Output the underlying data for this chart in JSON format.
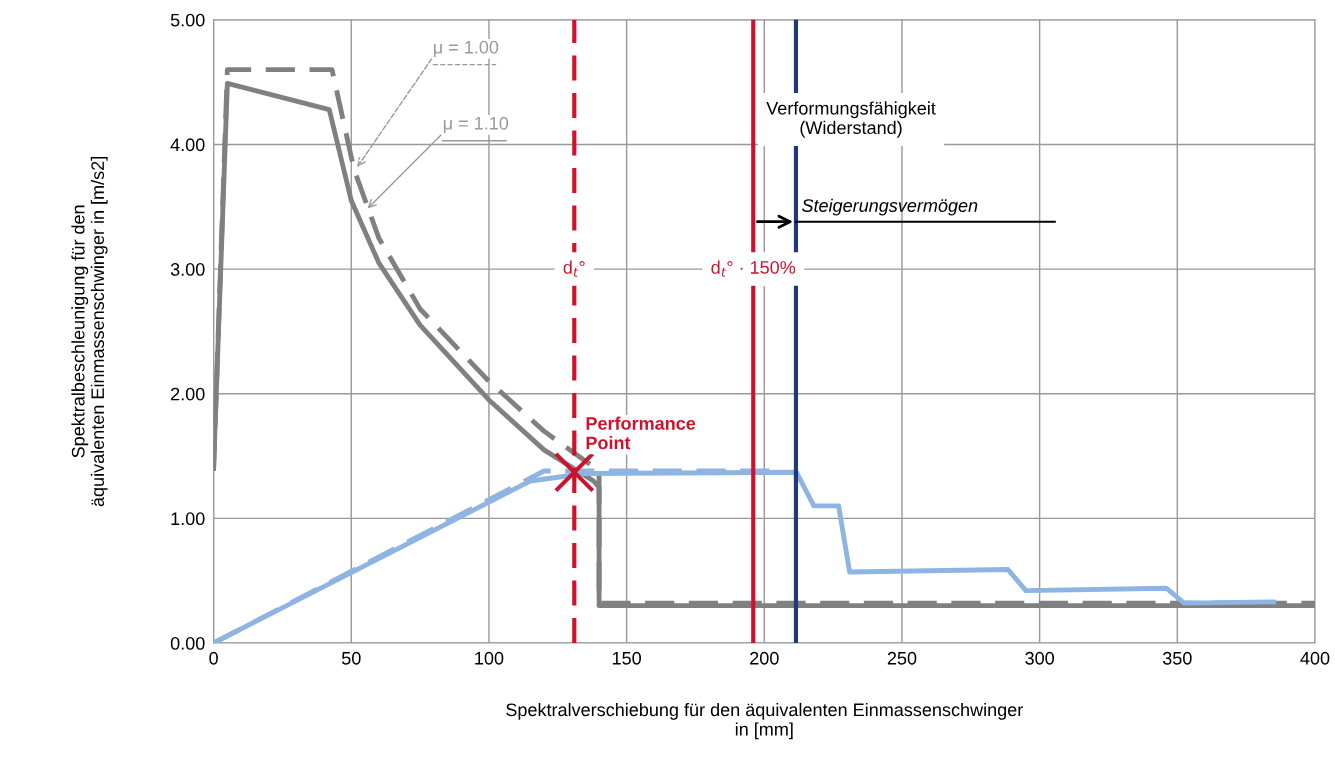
{
  "chart_data": {
    "type": "line",
    "xlabel": "Spektralverschiebung für den äquivalenten Einmassenschwinger\nin [mm]",
    "ylabel": "Spektralbeschleunigung für den\näquivalenten Einmassenschwinger in [m/s2]",
    "series": [
      {
        "color": "#808080",
        "line_style": "dashed",
        "x": [
          0,
          5,
          43,
          51,
          60,
          75,
          100,
          120,
          140,
          140,
          400
        ],
        "values": [
          1.4,
          4.6,
          4.6,
          3.8,
          3.25,
          2.68,
          2.1,
          1.7,
          1.38,
          0.32,
          0.32
        ]
      },
      {
        "color": "#808080",
        "line_style": "solid",
        "x": [
          0,
          5,
          42,
          50,
          60,
          75,
          100,
          120,
          138,
          140,
          140,
          400
        ],
        "values": [
          1.4,
          4.49,
          4.28,
          3.55,
          3.05,
          2.55,
          1.95,
          1.55,
          1.3,
          1.25,
          0.3,
          0.3
        ]
      },
      {
        "color": "#8db4e2",
        "line_style": "dashed",
        "x": [
          0,
          100,
          120,
          205
        ],
        "values": [
          0,
          1.15,
          1.38,
          1.38
        ]
      },
      {
        "color": "#8db4e2",
        "line_style": "solid",
        "x": [
          0,
          115,
          125,
          135,
          211.7,
          218,
          227,
          231,
          288.5,
          295,
          346,
          352.5,
          385
        ],
        "values": [
          0,
          1.3,
          1.33,
          1.36,
          1.37,
          1.1,
          1.1,
          0.57,
          0.59,
          0.42,
          0.44,
          0.32,
          0.33
        ]
      },
      {
        "type": "scatter",
        "name": "Performance\nPoint",
        "color": "#d0112b",
        "marker": "cross",
        "x": [
          131
        ],
        "values": [
          1.37
        ]
      }
    ],
    "ref_lines": [
      {
        "axis": "x",
        "value": 131,
        "label": "d$_{t}$°",
        "color": "#d0112b",
        "line_style": "dashed"
      },
      {
        "axis": "x",
        "value": 196,
        "label": "d$_{t}$° · 150%",
        "color": "#d0112b",
        "line_style": "solid"
      },
      {
        "axis": "x",
        "value": 211.5,
        "label": "Verformungsfähigkeit\n(Widerstand)",
        "color": "#1f3a7a",
        "line_style": "solid"
      }
    ],
    "annotations": [
      {
        "text": "μ = 1.00",
        "x": 51.6,
        "y": 3.8
      },
      {
        "text": "μ = 1.10",
        "x": 55.2,
        "y": 3.47
      },
      {
        "text": "Steigerungsvermögen",
        "x": 211.5,
        "y": 3.38
      }
    ],
    "xlim": [
      0,
      400
    ],
    "xticks": [
      0,
      50,
      100,
      150,
      200,
      250,
      300,
      350,
      400
    ],
    "ylim": [
      0,
      5
    ],
    "yticks": [
      {
        "value": 0,
        "label": "0.00"
      },
      {
        "value": 1,
        "label": "1.00"
      },
      {
        "value": 2,
        "label": "2.00"
      },
      {
        "value": 3,
        "label": "3.00"
      },
      {
        "value": 4,
        "label": "4.00"
      },
      {
        "value": 5,
        "label": "5.00"
      }
    ],
    "grid": true,
    "legend": false
  }
}
